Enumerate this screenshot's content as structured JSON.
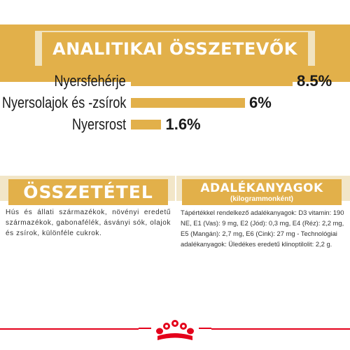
{
  "analytics": {
    "title": "ANALITIKAI ÖSSZETEVŐK",
    "items": [
      {
        "label": "Nyersfehérje",
        "value_text": "8.5%",
        "value": 8.5
      },
      {
        "label": "Nyersolajok és -zsírok",
        "value_text": "6%",
        "value": 6
      },
      {
        "label": "Nyersrost",
        "value_text": "1.6%",
        "value": 1.6
      }
    ]
  },
  "composition": {
    "title": "ÖSSZETÉTEL",
    "text": "Hús és állati származékok, növényi eredetű származékok, gabonafélék, ásványi sók, olajok és zsírok, különféle cukrok."
  },
  "additives": {
    "title": "ADALÉKANYAGOK",
    "subtitle": "(kilogrammonként)",
    "text": "Tápértékkel rendelkező adalékanyagok: D3 vitamin: 190 NE, E1 (Vas): 9 mg, E2 (Jód): 0,3 mg, E4 (Réz): 2,2 mg, E5 (Mangán): 2,7 mg, E6 (Cink): 27 mg - Technológiai adalékanyagok: Üledékes eredetű klinoptilolit: 2,2 g."
  },
  "footer": {
    "logo_icon": "royal-canin-crown-icon"
  },
  "colors": {
    "gold": "#e2b04a",
    "cream": "#f2e6c8",
    "red": "#e4001b"
  }
}
